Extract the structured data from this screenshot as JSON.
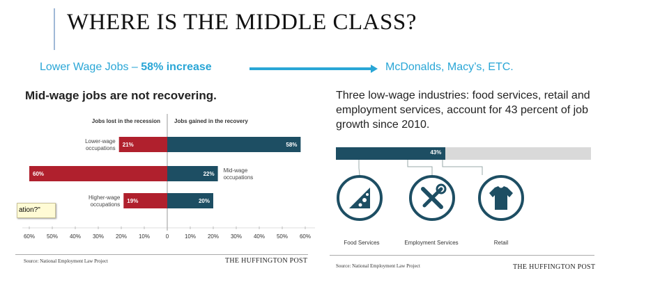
{
  "slide": {
    "title": "WHERE IS THE MIDDLE CLASS?",
    "sub_left": "Lower Wage Jobs – ",
    "sub_left_bold": "58% increase",
    "sub_right": "McDonalds, Macy’s, ETC."
  },
  "colors": {
    "red": "#b0202d",
    "navy": "#1d4e63",
    "accent": "#29a6d6",
    "gray": "#d9d9d9"
  },
  "tooltip": {
    "text": "ation?\""
  },
  "chart_data": [
    {
      "type": "bar",
      "title": "Mid-wage jobs are not recovering.",
      "left_header": "Jobs lost in the recession",
      "right_header": "Jobs gained in the recovery",
      "categories": [
        "Lower-wage occupations",
        "Mid-wage occupations",
        "Higher-wage occupations"
      ],
      "category_lines": [
        [
          "Lower-wage",
          "occupations"
        ],
        [
          "Mid-wage",
          "occupations"
        ],
        [
          "Higher-wage",
          "occupations"
        ]
      ],
      "series": [
        {
          "name": "Jobs lost in the recession",
          "values": [
            21,
            60,
            19
          ]
        },
        {
          "name": "Jobs gained in the recovery",
          "values": [
            58,
            22,
            20
          ]
        }
      ],
      "xlim": [
        -60,
        60
      ],
      "xticks": [
        "60%",
        "50%",
        "40%",
        "30%",
        "20%",
        "10%",
        "0",
        "10%",
        "20%",
        "30%",
        "40%",
        "50%",
        "60%"
      ],
      "source": "Source: National Employment Law Project",
      "publisher": "THE HUFFINGTON POST"
    },
    {
      "type": "bar",
      "title": "Three low-wage industries: food services, retail and employment services, account for 43 percent of job growth since 2010.",
      "values": [
        43
      ],
      "value_label": "43%",
      "ylim": [
        0,
        100
      ],
      "icons": [
        {
          "label": "Food Services",
          "icon": "pizza-slice-icon"
        },
        {
          "label": "Employment Services",
          "icon": "tools-icon"
        },
        {
          "label": "Retail",
          "icon": "tshirt-icon"
        }
      ],
      "source": "Source: National Employment Law Project",
      "publisher": "THE HUFFINGTON POST"
    }
  ]
}
